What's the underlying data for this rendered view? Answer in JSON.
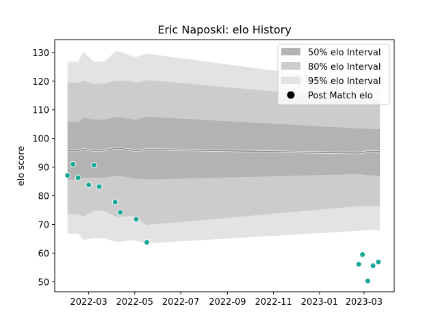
{
  "chart_data": {
    "type": "line",
    "title": "Eric Naposki: elo History",
    "xlabel": "",
    "ylabel": "elo score",
    "xlim": [
      "2022-01-15",
      "2023-04-10"
    ],
    "ylim": [
      46.5,
      134.5
    ],
    "x_ticks": [
      "2022-03",
      "2022-05",
      "2022-07",
      "2022-09",
      "2022-11",
      "2023-01",
      "2023-03"
    ],
    "y_ticks": [
      50,
      60,
      70,
      80,
      90,
      100,
      110,
      120,
      130
    ],
    "grid": false,
    "legend_position": "top-right",
    "bands": [
      {
        "name": "95% elo Interval",
        "color": "#e3e3e3",
        "x": [
          "2022-02-01",
          "2022-02-15",
          "2022-02-22",
          "2022-03-08",
          "2022-03-22",
          "2022-04-05",
          "2022-04-12",
          "2022-04-26",
          "2022-05-03",
          "2022-05-17",
          "2023-02-22",
          "2023-03-08",
          "2023-03-22"
        ],
        "upper": [
          126.8,
          126.8,
          130.3,
          126.8,
          126.9,
          130.3,
          130.3,
          128.8,
          128.5,
          129.6,
          119.8,
          119.8,
          119.4
        ],
        "lower": [
          66.8,
          66.8,
          64.6,
          65.2,
          65.2,
          64.0,
          64.0,
          64.5,
          64.2,
          63.4,
          67.8,
          68.1,
          67.8
        ]
      },
      {
        "name": "80% elo Interval",
        "color": "#cccccc",
        "x": [
          "2022-02-01",
          "2022-02-15",
          "2022-02-22",
          "2022-03-08",
          "2022-03-22",
          "2022-04-05",
          "2022-04-12",
          "2022-04-26",
          "2022-05-03",
          "2022-05-17",
          "2023-02-22",
          "2023-03-08",
          "2023-03-22"
        ],
        "upper": [
          119.5,
          119.5,
          120.2,
          119.0,
          119.2,
          120.1,
          120.1,
          120.1,
          119.4,
          120.4,
          113.8,
          113.8,
          113.6
        ],
        "lower": [
          73.6,
          73.6,
          72.8,
          74.8,
          74.8,
          72.8,
          72.6,
          73.0,
          72.3,
          69.8,
          76.4,
          76.4,
          76.4
        ]
      },
      {
        "name": "50% elo Interval",
        "color": "#b3b3b3",
        "x": [
          "2022-02-01",
          "2022-02-15",
          "2022-02-22",
          "2022-03-08",
          "2022-03-22",
          "2022-04-05",
          "2022-04-12",
          "2022-04-26",
          "2022-05-03",
          "2022-05-17",
          "2023-02-22",
          "2023-03-08",
          "2023-03-22"
        ],
        "upper": [
          105.8,
          105.8,
          107.1,
          106.6,
          106.6,
          107.4,
          107.4,
          106.8,
          106.5,
          107.6,
          103.5,
          103.4,
          103.2
        ],
        "lower": [
          85.7,
          85.7,
          86.4,
          86.4,
          86.4,
          86.9,
          86.9,
          86.3,
          86.0,
          85.7,
          87.6,
          87.2,
          87.0
        ]
      }
    ],
    "series": [
      {
        "name": "",
        "kind": "line",
        "color": "#808080",
        "x": [
          "2022-02-01",
          "2022-02-15",
          "2022-02-22",
          "2022-03-08",
          "2022-03-22",
          "2022-04-05",
          "2022-04-12",
          "2022-04-26",
          "2022-05-03",
          "2022-05-17",
          "2023-02-22",
          "2023-03-08",
          "2023-03-22"
        ],
        "values": [
          95.7,
          95.7,
          96.2,
          95.8,
          95.9,
          96.5,
          96.5,
          96.0,
          95.7,
          96.2,
          94.9,
          95.5,
          95.5
        ]
      },
      {
        "name": "Post Match elo",
        "kind": "scatter",
        "color": "#17a796",
        "x": [
          "2022-02-01",
          "2022-02-08",
          "2022-02-15",
          "2022-03-01",
          "2022-03-08",
          "2022-03-15",
          "2022-04-05",
          "2022-04-12",
          "2022-05-03",
          "2022-05-17",
          "2023-02-22",
          "2023-02-27",
          "2023-03-06",
          "2023-03-13",
          "2023-03-20"
        ],
        "values": [
          87.1,
          91.0,
          86.3,
          83.8,
          90.7,
          83.2,
          77.8,
          74.2,
          71.8,
          63.8,
          56.1,
          59.5,
          50.3,
          55.6,
          56.9
        ]
      }
    ],
    "legend": [
      {
        "label": "50% elo Interval",
        "kind": "patch",
        "color": "#b3b3b3"
      },
      {
        "label": "80% elo Interval",
        "kind": "patch",
        "color": "#cccccc"
      },
      {
        "label": "95% elo Interval",
        "kind": "patch",
        "color": "#e3e3e3"
      },
      {
        "label": "Post Match elo",
        "kind": "marker",
        "color": "#000000"
      }
    ]
  }
}
